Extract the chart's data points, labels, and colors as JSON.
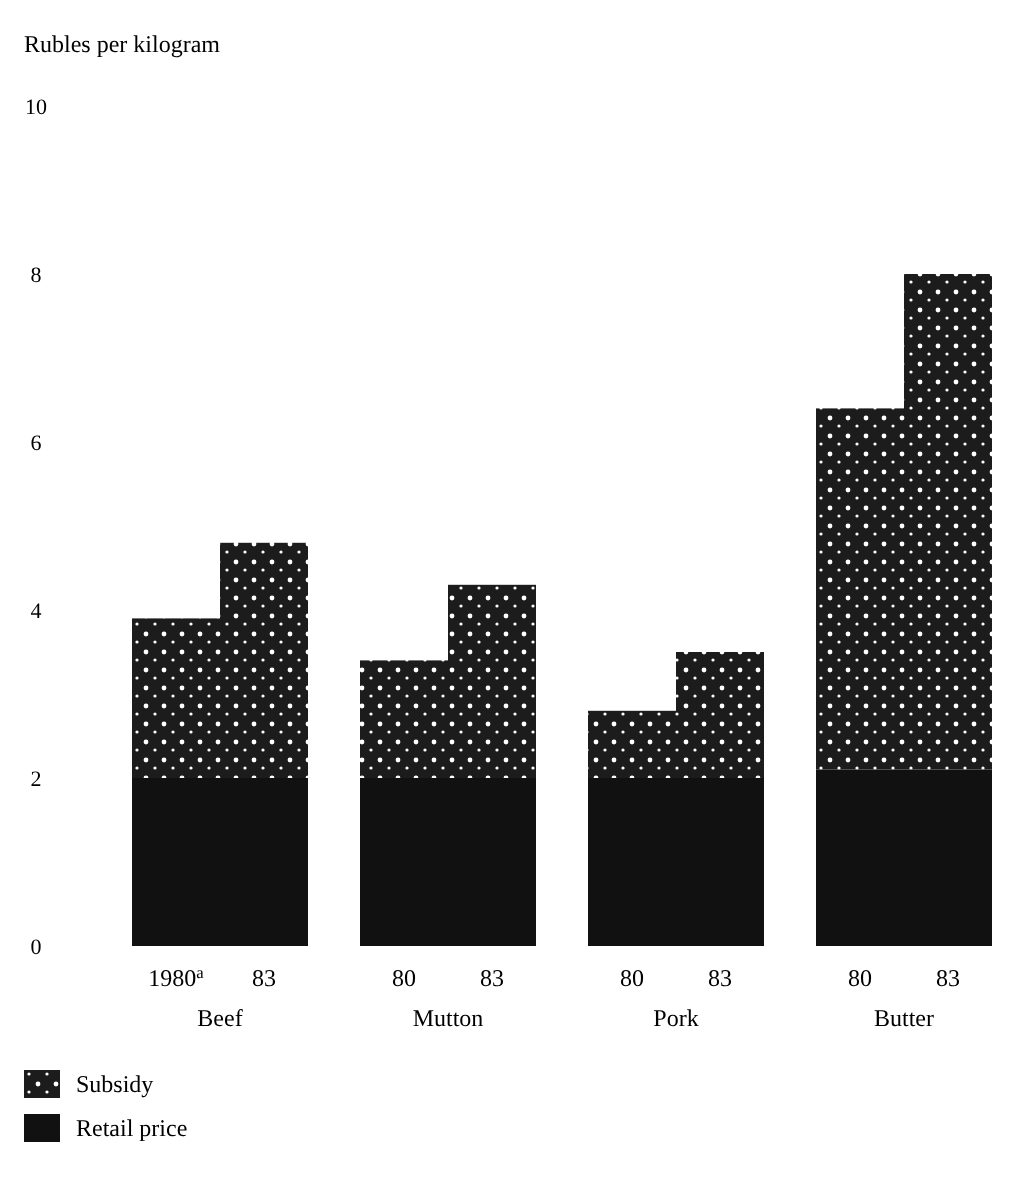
{
  "chart_data": {
    "type": "bar",
    "ylabel": "Rubles per kilogram",
    "categories": [
      "1980$^{a}$",
      "83",
      "80",
      "83",
      "80",
      "83",
      "80",
      "83"
    ],
    "annotations": [
      "Beef",
      "Mutton",
      "Pork",
      "Butter"
    ],
    "stacked": true,
    "series": [
      {
        "name": "Retail price",
        "color": "#111111",
        "values": [
          2.0,
          2.0,
          2.0,
          2.0,
          2.0,
          2.0,
          2.1,
          2.1
        ]
      },
      {
        "name": "Subsidy",
        "color": "#1c1c1c",
        "values": [
          1.9,
          2.8,
          1.4,
          2.3,
          0.8,
          1.5,
          4.3,
          5.9
        ]
      }
    ],
    "ylim": [
      0,
      10
    ],
    "yticks": [
      0,
      2,
      4,
      6,
      8,
      10
    ],
    "grid": false,
    "legend": "bottom left"
  }
}
